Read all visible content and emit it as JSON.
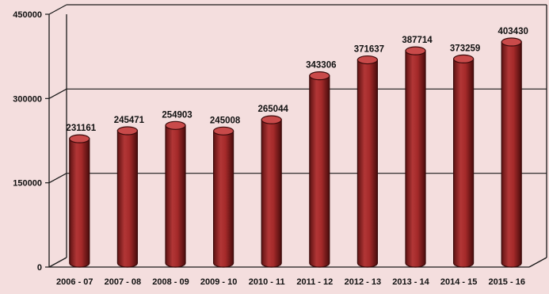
{
  "chart_data": {
    "type": "bar",
    "categories": [
      "2006 - 07",
      "2007 - 08",
      "2008 - 09",
      "2009 - 10",
      "2010 - 11",
      "2011 - 12",
      "2012 - 13",
      "2013 - 14",
      "2014 - 15",
      "2015 - 16"
    ],
    "values": [
      231161,
      245471,
      254903,
      245008,
      265044,
      343306,
      371637,
      387714,
      373259,
      403430
    ],
    "value_labels": [
      "231161",
      "245471",
      "254903",
      "245008",
      "265044",
      "343306",
      "371637",
      "387714",
      "373259",
      "403430"
    ],
    "y_ticks": [
      0,
      150000,
      300000,
      450000
    ],
    "y_tick_labels": [
      "0",
      "150000",
      "300000",
      "450000"
    ],
    "ylim": [
      0,
      450000
    ],
    "grid": true,
    "bar_style": "3d-cylinder",
    "colors": {
      "background": "#f4dede",
      "bar_body": "#a52a2a",
      "bar_top": "#c94a4a",
      "bar_outline": "#3a0a0a",
      "grid": "#1a1a1a"
    }
  }
}
